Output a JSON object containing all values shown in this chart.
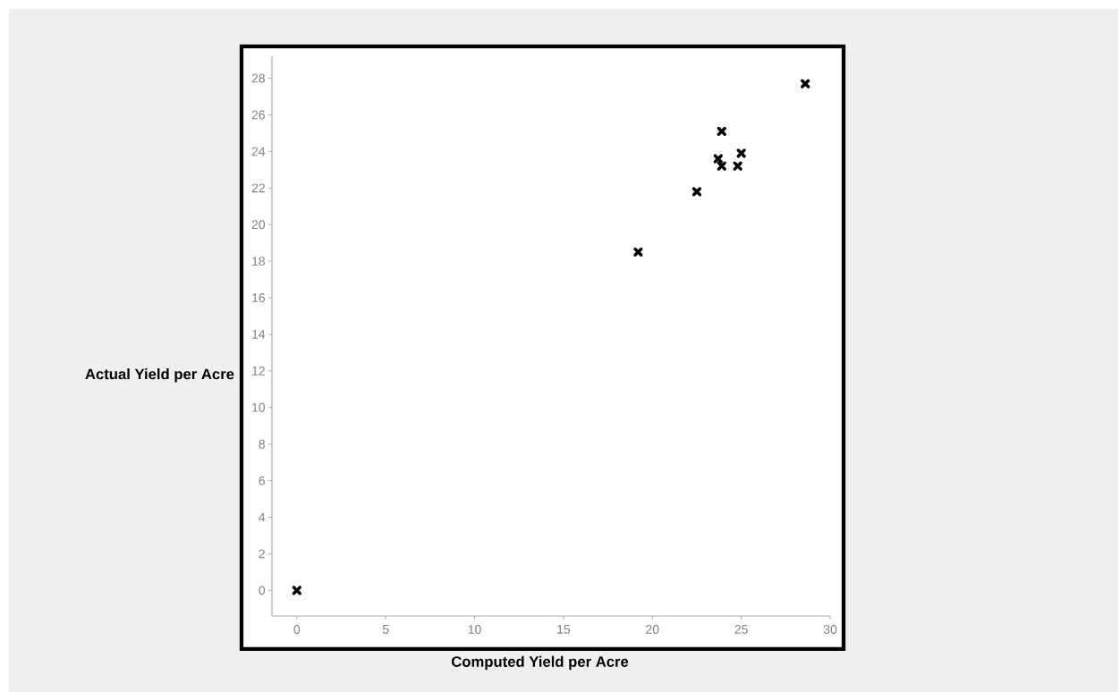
{
  "chart_data": {
    "type": "scatter",
    "xlabel": "Computed Yield per Acre",
    "ylabel": "Actual Yield per Acre",
    "x": [
      0,
      19.2,
      22.5,
      23.7,
      23.9,
      23.9,
      24.8,
      25.0,
      28.6
    ],
    "values": [
      0,
      18.5,
      21.8,
      23.6,
      23.2,
      25.1,
      23.2,
      23.9,
      27.7
    ],
    "color": "#000000",
    "marker": "cross",
    "xlim": [
      -1.4,
      30
    ],
    "ylim": [
      -1.4,
      29.2
    ],
    "xticks": [
      0,
      5,
      10,
      15,
      20,
      25,
      30
    ],
    "yticks": [
      0,
      2,
      4,
      6,
      8,
      10,
      12,
      14,
      16,
      18,
      20,
      22,
      24,
      26,
      28
    ]
  }
}
